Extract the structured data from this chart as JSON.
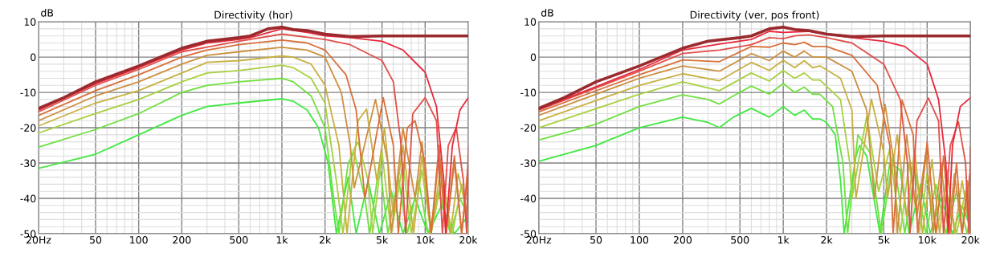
{
  "chart_data": [
    {
      "type": "line",
      "title": "Directivity (hor)",
      "ylabel": "dB",
      "log": "x",
      "grid": true,
      "xlim": [
        20,
        20000
      ],
      "xticks": [
        {
          "value": 20,
          "label": "20Hz"
        },
        50,
        100,
        200,
        500,
        {
          "value": 1000,
          "label": "1k"
        },
        {
          "value": 2000,
          "label": "2k"
        },
        {
          "value": 5000,
          "label": "5k"
        },
        {
          "value": 10000,
          "label": "10k"
        },
        {
          "value": 20000,
          "label": "20k"
        }
      ],
      "ylim": [
        -50,
        10
      ],
      "yticks": [
        -50,
        -40,
        -30,
        -20,
        -10,
        0,
        10
      ],
      "series": [
        {
          "color": "#9a2a2e",
          "x": [
            20,
            30,
            50,
            100,
            200,
            300,
            500,
            600,
            800,
            1000,
            1200,
            1500,
            2000,
            3000,
            5000,
            10000,
            20000
          ],
          "values": [
            -14.5,
            -11.5,
            -7,
            -2.5,
            2.5,
            4.5,
            5.5,
            6,
            8,
            8.5,
            7.8,
            7.5,
            6.5,
            5.8,
            6,
            6,
            6
          ]
        },
        {
          "color": "#e8283c",
          "x": [
            20,
            50,
            100,
            200,
            300,
            500,
            600,
            1000,
            1500,
            2000,
            3000,
            5000,
            7000,
            10000,
            12000,
            13500,
            13900,
            15500,
            17500,
            20000
          ],
          "values": [
            -15,
            -7.5,
            -3,
            2,
            4,
            5,
            5.5,
            8,
            7,
            6,
            5.5,
            4.5,
            2,
            -4.3,
            -14,
            -35,
            -50,
            -25,
            -15,
            -11.5
          ]
        },
        {
          "color": "#e0504a",
          "x": [
            20,
            50,
            100,
            200,
            500,
            1000,
            2000,
            3000,
            5000,
            6000,
            6800,
            7300,
            8200,
            10000,
            12000,
            13200,
            14500,
            16500,
            18500,
            19500,
            20000
          ],
          "values": [
            -15.5,
            -8,
            -3.5,
            1.5,
            4.5,
            6.5,
            5,
            3.5,
            -1,
            -7,
            -25,
            -50,
            -16,
            -11.5,
            -18,
            -50,
            -25,
            -20,
            -35,
            -50,
            -25.5
          ]
        },
        {
          "color": "#d8703a",
          "x": [
            20,
            50,
            100,
            200,
            300,
            500,
            1000,
            1500,
            2000,
            2800,
            3300,
            3800,
            5100,
            6000,
            6500,
            7500,
            8500,
            10000,
            11000,
            12500,
            14000,
            16000,
            18000,
            20000
          ],
          "values": [
            -16.5,
            -9.5,
            -5,
            0,
            2,
            3.5,
            4.8,
            4,
            2,
            -5,
            -15,
            -40,
            -11.5,
            -25,
            -50,
            -20,
            -18,
            -30,
            -50,
            -25,
            -50,
            -28,
            -50,
            -30
          ]
        },
        {
          "color": "#cc9040",
          "x": [
            20,
            50,
            100,
            200,
            300,
            500,
            1000,
            1500,
            2000,
            2600,
            3000,
            3200,
            4500,
            5500,
            5800,
            7000,
            8500,
            9500,
            11000,
            12500,
            14000,
            16000,
            18000,
            20000
          ],
          "values": [
            -18,
            -11,
            -7,
            -2,
            0.5,
            1.5,
            2.8,
            2,
            0,
            -10,
            -25,
            -37,
            -12,
            -30,
            -50,
            -20,
            -40,
            -24,
            -50,
            -28,
            -50,
            -30,
            -50,
            -32
          ]
        },
        {
          "color": "#c8b040",
          "x": [
            20,
            50,
            100,
            200,
            300,
            500,
            1000,
            1200,
            1600,
            2000,
            2500,
            2850,
            3400,
            3900,
            4600,
            5200,
            6000,
            7000,
            8300,
            9500,
            11000,
            13000,
            15000,
            17000,
            20000
          ],
          "values": [
            -19.5,
            -13,
            -9.5,
            -4.5,
            -1.5,
            -1,
            0.3,
            0,
            -2,
            -8,
            -25,
            -50,
            -18,
            -14.7,
            -35,
            -20,
            -45,
            -25,
            -50,
            -28,
            -50,
            -30,
            -50,
            -33,
            -45
          ]
        },
        {
          "color": "#a8d040",
          "x": [
            20,
            50,
            100,
            200,
            300,
            500,
            1000,
            1200,
            1600,
            2000,
            2400,
            2670,
            3100,
            3400,
            4000,
            4300,
            5000,
            5800,
            7000,
            8000,
            9500,
            11000,
            13000,
            15500,
            18000,
            20000
          ],
          "values": [
            -21.5,
            -16,
            -12,
            -7,
            -4.5,
            -3.8,
            -2.3,
            -3,
            -6,
            -13,
            -35,
            -50,
            -27,
            -24,
            -35,
            -50,
            -27,
            -50,
            -30,
            -50,
            -32,
            -50,
            -35,
            -50,
            -36,
            -50
          ]
        },
        {
          "color": "#70e040",
          "x": [
            20,
            50,
            100,
            200,
            300,
            500,
            1000,
            1200,
            1600,
            2000,
            2300,
            2500,
            2900,
            3200,
            3800,
            4100,
            4800,
            5500,
            6500,
            7500,
            9000,
            10500,
            12500,
            15000,
            17500,
            20000
          ],
          "values": [
            -25.5,
            -20.5,
            -16,
            -10,
            -8,
            -7,
            -6,
            -7,
            -11,
            -20,
            -40,
            -50,
            -30,
            -27,
            -40,
            -50,
            -30,
            -50,
            -34,
            -50,
            -35,
            -50,
            -38,
            -50,
            -40,
            -45
          ]
        },
        {
          "color": "#40e840",
          "x": [
            20,
            50,
            100,
            200,
            300,
            500,
            1000,
            1200,
            1500,
            1800,
            2100,
            2400,
            2900,
            3300,
            4000,
            4800,
            5800,
            7000,
            8500,
            10500,
            13000,
            16000,
            20000
          ],
          "values": [
            -31.5,
            -27.5,
            -22,
            -16.5,
            -14,
            -13,
            -11.8,
            -12.5,
            -15,
            -20,
            -30,
            -50,
            -34,
            -50,
            -35,
            -50,
            -38,
            -50,
            -40,
            -50,
            -42,
            -50,
            -45
          ]
        }
      ]
    },
    {
      "type": "line",
      "title": "Directivity (ver, pos front)",
      "ylabel": "dB",
      "log": "x",
      "grid": true,
      "xlim": [
        20,
        20000
      ],
      "xticks": [
        {
          "value": 20,
          "label": "20Hz"
        },
        50,
        100,
        200,
        500,
        {
          "value": 1000,
          "label": "1k"
        },
        {
          "value": 2000,
          "label": "2k"
        },
        {
          "value": 5000,
          "label": "5k"
        },
        {
          "value": 10000,
          "label": "10k"
        },
        {
          "value": 20000,
          "label": "20k"
        }
      ],
      "ylim": [
        -50,
        10
      ],
      "yticks": [
        -50,
        -40,
        -30,
        -20,
        -10,
        0,
        10
      ],
      "series": [
        {
          "color": "#9a2a2e",
          "x": [
            20,
            30,
            50,
            100,
            200,
            300,
            500,
            600,
            800,
            1000,
            1200,
            1500,
            2000,
            3000,
            5000,
            10000,
            20000
          ],
          "values": [
            -14.5,
            -11.5,
            -7,
            -2.5,
            2.5,
            4.5,
            5.5,
            6,
            8,
            8.5,
            7.8,
            7.5,
            6.5,
            5.8,
            6,
            6,
            6
          ]
        },
        {
          "color": "#e8283c",
          "x": [
            20,
            100,
            200,
            360,
            600,
            800,
            1000,
            1500,
            2000,
            3000,
            5000,
            7000,
            10000,
            12000,
            13500,
            14000,
            15000,
            17000,
            20000
          ],
          "values": [
            -14.8,
            -3.5,
            2,
            3.7,
            5,
            7.3,
            7,
            7.3,
            6.5,
            5.5,
            4.5,
            3,
            -2,
            -12,
            -30,
            -50,
            -25,
            -14,
            -11.5
          ]
        },
        {
          "color": "#e0504a",
          "x": [
            20,
            100,
            200,
            360,
            600,
            800,
            1000,
            1200,
            1500,
            2000,
            3000,
            5000,
            6500,
            7300,
            7600,
            8500,
            10200,
            12000,
            13000,
            14500,
            16500,
            18500,
            19500,
            20000
          ],
          "values": [
            -15,
            -4,
            1,
            2,
            3.5,
            5.5,
            5.2,
            6,
            6.3,
            5.5,
            4,
            -2,
            -12,
            -30,
            -50,
            -18,
            -11.6,
            -18,
            -50,
            -25,
            -18.3,
            -30,
            -50,
            -25.5
          ]
        },
        {
          "color": "#d8703a",
          "x": [
            20,
            100,
            200,
            360,
            600,
            800,
            1000,
            1200,
            1400,
            1600,
            2000,
            3000,
            4500,
            5500,
            5800,
            6700,
            8000,
            8600,
            10000,
            11500,
            13000,
            14500,
            16000,
            17500,
            20000
          ],
          "values": [
            -15.5,
            -5,
            -0.8,
            -1.3,
            3,
            2.8,
            4,
            3.5,
            4.2,
            3,
            3,
            0.5,
            -8,
            -25,
            -50,
            -12.2,
            -22,
            -50,
            -24,
            -50,
            -28,
            -50,
            -30,
            -50,
            -32
          ]
        },
        {
          "color": "#cc9040",
          "x": [
            20,
            100,
            200,
            360,
            600,
            800,
            1000,
            1200,
            1400,
            1600,
            2000,
            3000,
            3800,
            4300,
            5100,
            5900,
            6200,
            7200,
            8500,
            9800,
            11000,
            12500,
            14000,
            15500,
            17500,
            19000,
            20000
          ],
          "values": [
            -16.5,
            -6,
            -2.5,
            -4,
            1,
            -1,
            1.7,
            0,
            1.7,
            0,
            0,
            -4,
            -15,
            -40,
            -13.4,
            -30,
            -50,
            -22,
            -45,
            -27,
            -50,
            -30,
            -50,
            -33,
            -50,
            -35,
            -50
          ]
        },
        {
          "color": "#c8b040",
          "x": [
            20,
            100,
            200,
            360,
            600,
            800,
            1000,
            1200,
            1400,
            1600,
            1800,
            2500,
            3000,
            3200,
            4100,
            5000,
            5300,
            6200,
            7200,
            8200,
            9300,
            10800,
            12200,
            13800,
            15500,
            17500,
            20000
          ],
          "values": [
            -18,
            -8,
            -4.7,
            -6.7,
            -1.5,
            -3.8,
            -0.9,
            -3,
            -1,
            -3,
            -2.5,
            -6,
            -15,
            -40,
            -11.9,
            -27,
            -40,
            -22,
            -45,
            -26,
            -50,
            -29,
            -50,
            -32,
            -50,
            -35,
            -50
          ]
        },
        {
          "color": "#a8d040",
          "x": [
            20,
            100,
            200,
            360,
            600,
            800,
            1000,
            1200,
            1400,
            1600,
            1800,
            2500,
            2900,
            3000,
            3800,
            4600,
            5500,
            6500,
            7500,
            8800,
            10000,
            11500,
            13500,
            16000,
            18500,
            20000
          ],
          "values": [
            -20,
            -10.5,
            -7,
            -9.5,
            -4.5,
            -6.8,
            -3.8,
            -6,
            -4.5,
            -6.5,
            -6.5,
            -12,
            -30,
            -40,
            -16.8,
            -38,
            -26,
            -50,
            -30,
            -50,
            -33,
            -50,
            -37,
            -50,
            -38,
            -45
          ]
        },
        {
          "color": "#70e040",
          "x": [
            20,
            50,
            100,
            200,
            300,
            360,
            450,
            600,
            800,
            1000,
            1200,
            1400,
            1600,
            1800,
            2200,
            2600,
            2800,
            3300,
            4000,
            4800,
            5800,
            7000,
            8200,
            9800,
            11500,
            13500,
            16000,
            19000,
            20000
          ],
          "values": [
            -23.5,
            -19,
            -14,
            -10.7,
            -12,
            -13.3,
            -11,
            -8.2,
            -10.5,
            -7.5,
            -10,
            -8.5,
            -10.5,
            -10.5,
            -14,
            -30,
            -50,
            -22,
            -27,
            -50,
            -28,
            -50,
            -32,
            -50,
            -36,
            -50,
            -38,
            -50,
            -44
          ]
        },
        {
          "color": "#40e840",
          "x": [
            20,
            50,
            100,
            200,
            300,
            360,
            450,
            600,
            800,
            1000,
            1200,
            1400,
            1600,
            1800,
            2000,
            2300,
            2500,
            2650,
            3200,
            3400,
            3800,
            4700,
            5500,
            6500,
            7500,
            9000,
            10500,
            12500,
            15000,
            17500,
            20000
          ],
          "values": [
            -29.5,
            -25,
            -20,
            -17,
            -18.5,
            -20,
            -17,
            -14.5,
            -17,
            -14,
            -16.5,
            -15,
            -17.5,
            -17.5,
            -18.5,
            -22,
            -35,
            -50,
            -28,
            -25,
            -28,
            -50,
            -30,
            -32,
            -50,
            -36,
            -50,
            -40,
            -50,
            -42,
            -48
          ]
        }
      ]
    }
  ]
}
